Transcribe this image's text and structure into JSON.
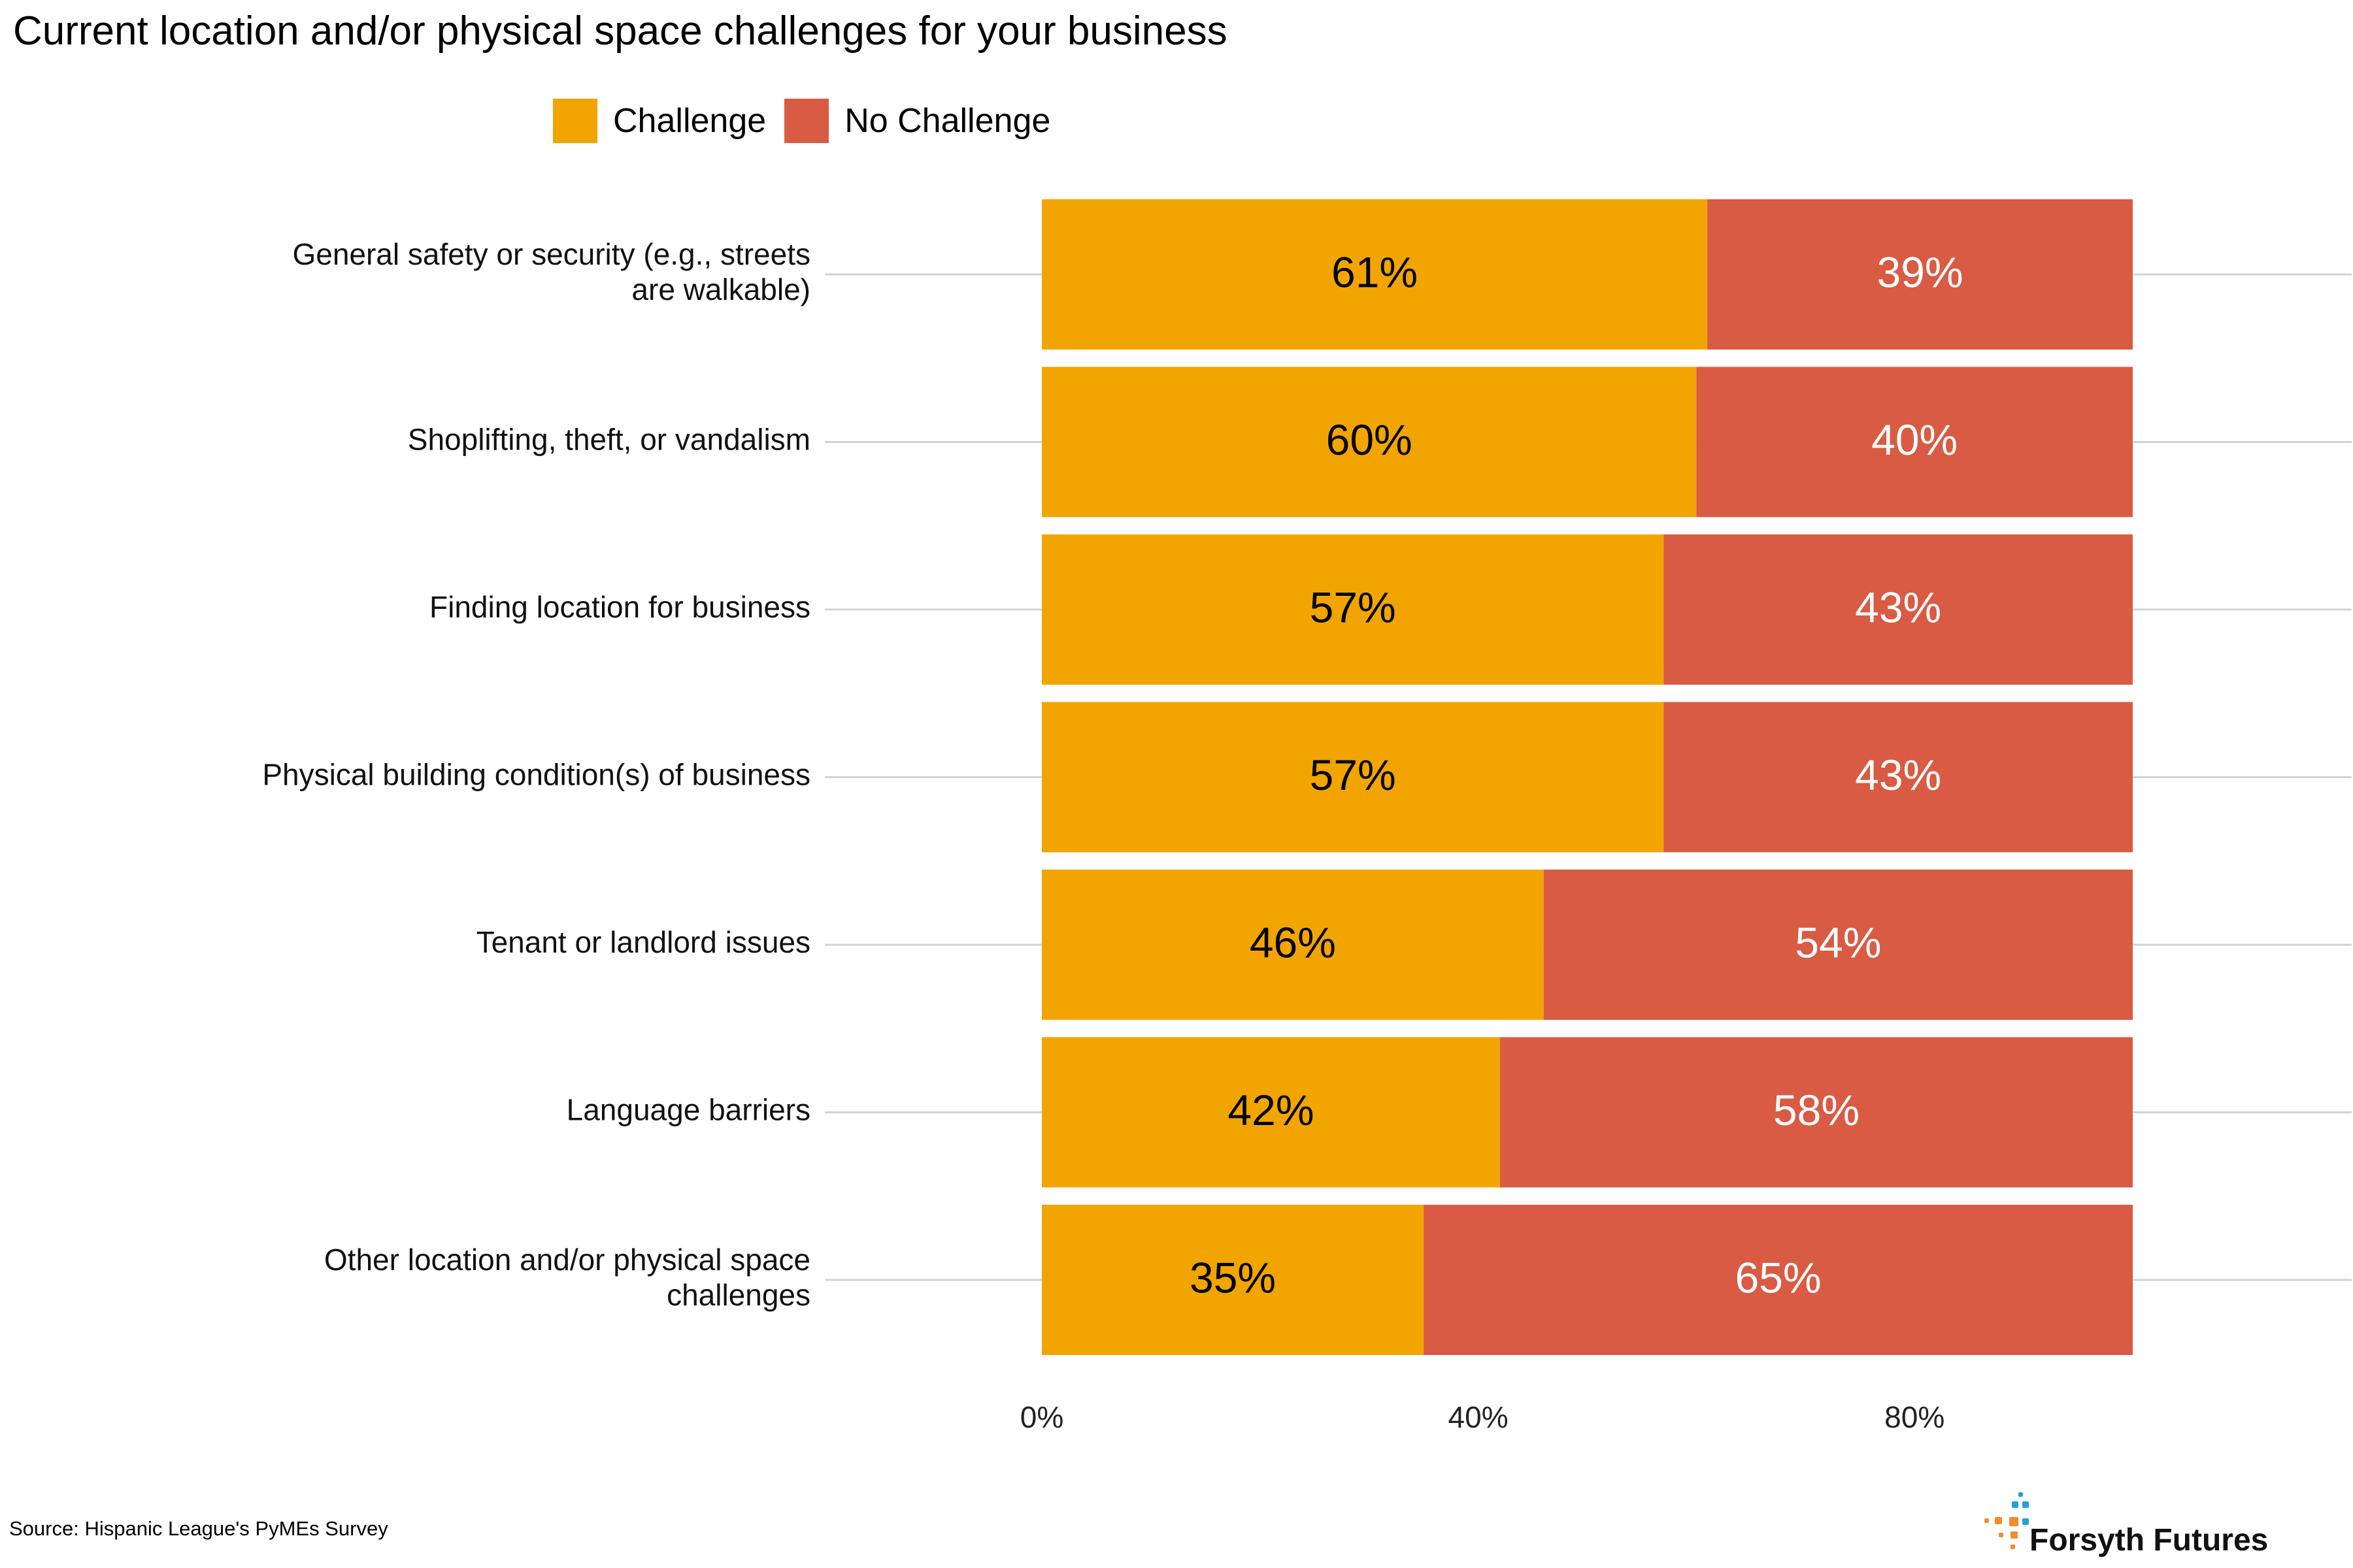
{
  "chart_data": {
    "type": "bar",
    "orientation": "horizontal",
    "stacked": true,
    "title": "Current location and/or physical space challenges for your business",
    "categories": [
      "General safety or security (e.g., streets are walkable)",
      "Shoplifting, theft, or vandalism",
      "Finding location for business",
      "Physical building condition(s) of business",
      "Tenant or landlord issues",
      "Language barriers",
      "Other location and/or physical space challenges"
    ],
    "series": [
      {
        "name": "Challenge",
        "color": "#F2A500",
        "values": [
          61,
          60,
          57,
          57,
          46,
          42,
          35
        ],
        "labels": [
          "61%",
          "60%",
          "57%",
          "57%",
          "46%",
          "42%",
          "35%"
        ],
        "label_color": "#000000"
      },
      {
        "name": "No Challenge",
        "color": "#D95B43",
        "values": [
          39,
          40,
          43,
          43,
          54,
          58,
          65
        ],
        "labels": [
          "39%",
          "40%",
          "43%",
          "43%",
          "54%",
          "58%",
          "65%"
        ],
        "label_color": "#ffffff"
      }
    ],
    "xlim": [
      0,
      100
    ],
    "xticks": [
      0,
      40,
      80
    ],
    "xtick_labels": [
      "0%",
      "40%",
      "80%"
    ],
    "grid": "horizontal",
    "legend_position": "top"
  },
  "source": "Source: Hispanic League's PyMEs Survey",
  "brand": {
    "name": "Forsyth Futures",
    "colors": [
      "#1FA3D6",
      "#F28C28"
    ]
  }
}
